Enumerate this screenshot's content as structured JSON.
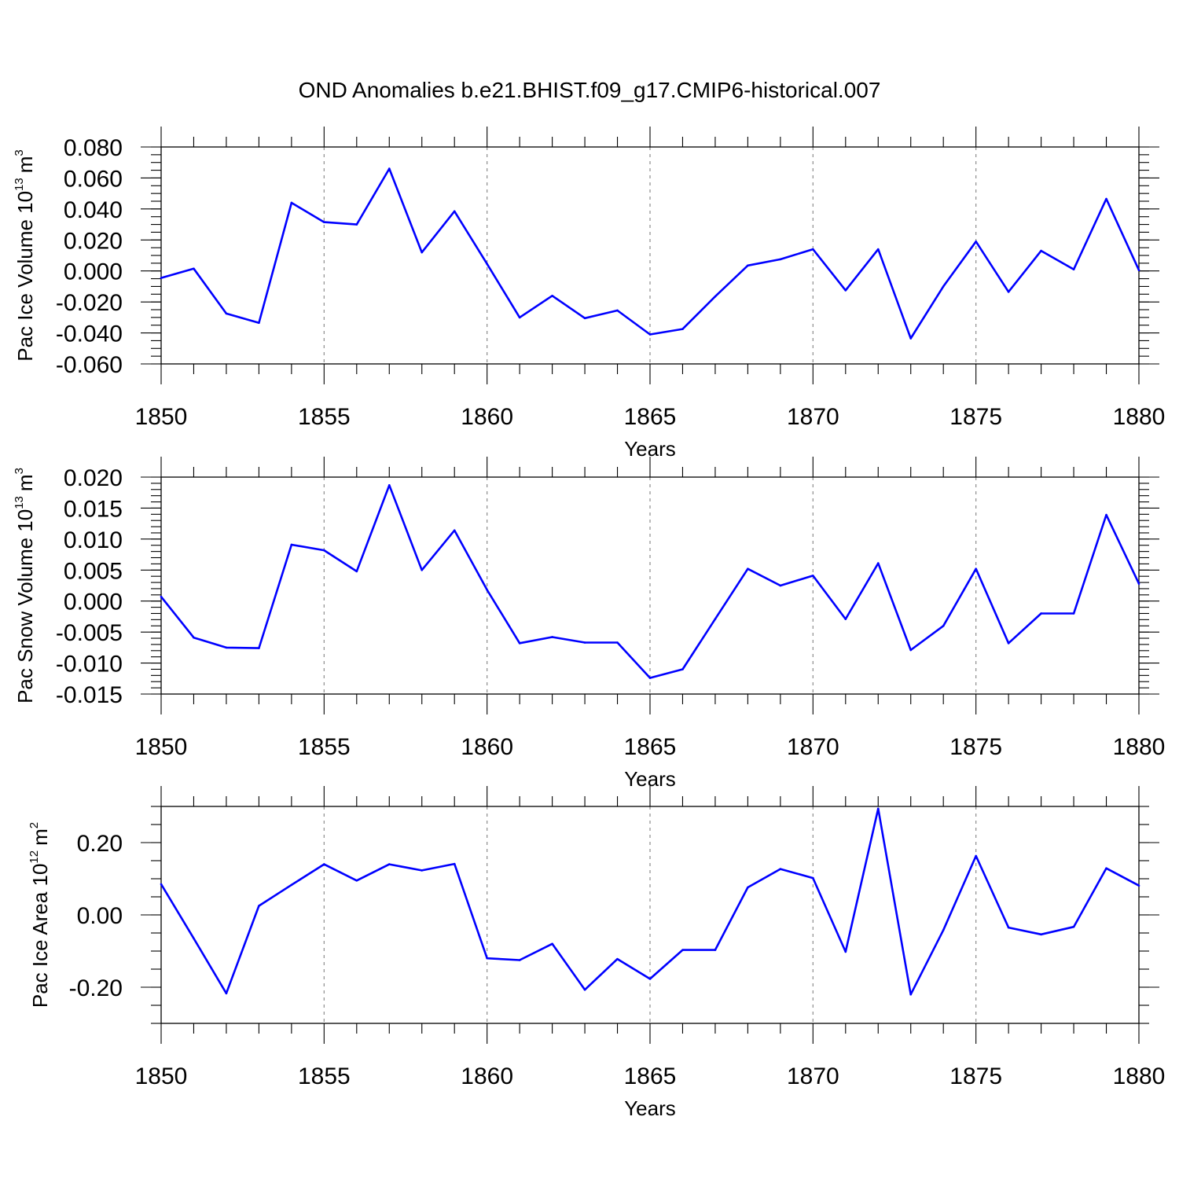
{
  "title": "OND Anomalies b.e21.BHIST.f09_g17.CMIP6-historical.007",
  "chart_data": [
    {
      "type": "line",
      "name": "pac-ice-volume",
      "ylabel_main": "Pac Ice Volume 10",
      "ylabel_exp": "13",
      "ylabel_unit": "m",
      "ylabel_unit_exp": "3",
      "xlabel": "Years",
      "xlim": [
        1850,
        1880
      ],
      "ylim": [
        -0.06,
        0.08
      ],
      "x_ticks": [
        1850,
        1855,
        1860,
        1865,
        1870,
        1875,
        1880
      ],
      "x_tick_labels": [
        "1850",
        "1855",
        "1860",
        "1865",
        "1870",
        "1875",
        "1880"
      ],
      "y_ticks": [
        -0.06,
        -0.04,
        -0.02,
        0.0,
        0.02,
        0.04,
        0.06,
        0.08
      ],
      "y_tick_labels": [
        "-0.060",
        "-0.040",
        "-0.020",
        "0.000",
        "0.020",
        "0.040",
        "0.060",
        "0.080"
      ],
      "y_minor_step": 0.005,
      "grid_x": [
        1855,
        1860,
        1865,
        1870,
        1875
      ],
      "color": "#0000ff",
      "x": [
        1850,
        1851,
        1852,
        1853,
        1854,
        1855,
        1856,
        1857,
        1858,
        1859,
        1860,
        1861,
        1862,
        1863,
        1864,
        1865,
        1866,
        1867,
        1868,
        1869,
        1870,
        1871,
        1872,
        1873,
        1874,
        1875,
        1876,
        1877,
        1878,
        1879,
        1880
      ],
      "values": [
        -0.0045,
        0.0015,
        -0.0275,
        -0.0335,
        0.044,
        0.0315,
        0.03,
        0.066,
        0.012,
        0.0385,
        0.0045,
        -0.03,
        -0.016,
        -0.0305,
        -0.0255,
        -0.041,
        -0.0375,
        -0.0165,
        0.0035,
        0.0075,
        0.014,
        -0.0125,
        0.014,
        -0.0435,
        -0.01,
        0.019,
        -0.0135,
        0.013,
        0.001,
        0.0465,
        0.0005
      ]
    },
    {
      "type": "line",
      "name": "pac-snow-volume",
      "ylabel_main": "Pac Snow Volume 10",
      "ylabel_exp": "13",
      "ylabel_unit": "m",
      "ylabel_unit_exp": "3",
      "xlabel": "Years",
      "xlim": [
        1850,
        1880
      ],
      "ylim": [
        -0.015,
        0.02
      ],
      "x_ticks": [
        1850,
        1855,
        1860,
        1865,
        1870,
        1875,
        1880
      ],
      "x_tick_labels": [
        "1850",
        "1855",
        "1860",
        "1865",
        "1870",
        "1875",
        "1880"
      ],
      "y_ticks": [
        -0.015,
        -0.01,
        -0.005,
        0.0,
        0.005,
        0.01,
        0.015,
        0.02
      ],
      "y_tick_labels": [
        "-0.015",
        "-0.010",
        "-0.005",
        "0.000",
        "0.005",
        "0.010",
        "0.015",
        "0.020"
      ],
      "y_minor_step": 0.001,
      "grid_x": [
        1855,
        1860,
        1865,
        1870,
        1875
      ],
      "color": "#0000ff",
      "x": [
        1850,
        1851,
        1852,
        1853,
        1854,
        1855,
        1856,
        1857,
        1858,
        1859,
        1860,
        1861,
        1862,
        1863,
        1864,
        1865,
        1866,
        1867,
        1868,
        1869,
        1870,
        1871,
        1872,
        1873,
        1874,
        1875,
        1876,
        1877,
        1878,
        1879,
        1880
      ],
      "values": [
        0.0007,
        -0.0059,
        -0.0075,
        -0.0076,
        0.0091,
        0.0082,
        0.0048,
        0.0187,
        0.005,
        0.0114,
        0.0018,
        -0.0068,
        -0.0058,
        -0.0067,
        -0.0067,
        -0.0124,
        -0.011,
        -0.0029,
        0.0052,
        0.0025,
        0.0041,
        -0.0029,
        0.0061,
        -0.0079,
        -0.004,
        0.0052,
        -0.0068,
        -0.002,
        -0.002,
        0.0139,
        0.0028
      ]
    },
    {
      "type": "line",
      "name": "pac-ice-area",
      "ylabel_main": "Pac Ice Area 10",
      "ylabel_exp": "12",
      "ylabel_unit": "m",
      "ylabel_unit_exp": "2",
      "xlabel": "Years",
      "xlim": [
        1850,
        1880
      ],
      "ylim": [
        -0.3,
        0.3
      ],
      "x_ticks": [
        1850,
        1855,
        1860,
        1865,
        1870,
        1875,
        1880
      ],
      "x_tick_labels": [
        "1850",
        "1855",
        "1860",
        "1865",
        "1870",
        "1875",
        "1880"
      ],
      "y_ticks": [
        -0.2,
        0.0,
        0.2
      ],
      "y_tick_labels": [
        "-0.20",
        "0.00",
        "0.20"
      ],
      "y_minor_step": 0.05,
      "grid_x": [
        1855,
        1860,
        1865,
        1870,
        1875
      ],
      "color": "#0000ff",
      "x": [
        1850,
        1851,
        1852,
        1853,
        1854,
        1855,
        1856,
        1857,
        1858,
        1859,
        1860,
        1861,
        1862,
        1863,
        1864,
        1865,
        1866,
        1867,
        1868,
        1869,
        1870,
        1871,
        1872,
        1873,
        1874,
        1875,
        1876,
        1877,
        1878,
        1879,
        1880
      ],
      "values": [
        0.085,
        -0.065,
        -0.217,
        0.025,
        0.083,
        0.14,
        0.095,
        0.14,
        0.123,
        0.141,
        -0.12,
        -0.125,
        -0.08,
        -0.207,
        -0.122,
        -0.177,
        -0.097,
        -0.097,
        0.076,
        0.127,
        0.102,
        -0.102,
        0.294,
        -0.22,
        -0.042,
        0.163,
        -0.035,
        -0.054,
        -0.033,
        0.129,
        0.081
      ]
    }
  ]
}
